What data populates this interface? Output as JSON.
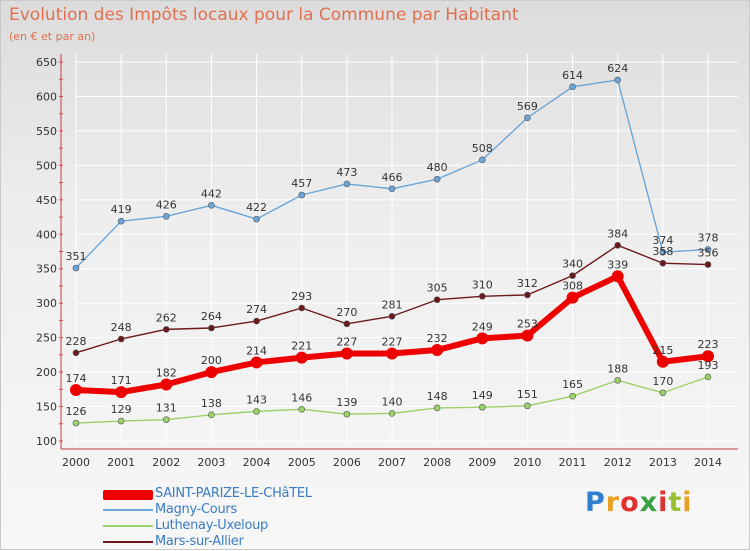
{
  "title": "Evolution des Impôts locaux pour la Commune par Habitant",
  "subtitle": "(en € et par an)",
  "brand": "Proxiti",
  "colors": {
    "saint_parize": "#ee0000",
    "magny": "#6aa6d8",
    "luthenay": "#9ad26a",
    "mars": "#6b1a1a"
  },
  "chart_data": {
    "type": "line",
    "title": "Evolution des Impôts locaux pour la Commune par Habitant",
    "ylabel": "(en € et par an)",
    "xlabel": "",
    "ylim": [
      100,
      650
    ],
    "yticks": [
      100,
      150,
      200,
      250,
      300,
      350,
      400,
      450,
      500,
      550,
      600,
      650
    ],
    "categories": [
      "2000",
      "2001",
      "2002",
      "2003",
      "2004",
      "2005",
      "2006",
      "2007",
      "2008",
      "2009",
      "2010",
      "2011",
      "2012",
      "2013",
      "2014"
    ],
    "series": [
      {
        "name": "SAINT-PARIZE-LE-CHâTEL",
        "key": "saint_parize",
        "values": [
          174,
          171,
          182,
          200,
          214,
          221,
          227,
          227,
          232,
          249,
          253,
          308,
          339,
          215,
          223
        ]
      },
      {
        "name": "Magny-Cours",
        "key": "magny",
        "values": [
          351,
          419,
          426,
          442,
          422,
          457,
          473,
          466,
          480,
          508,
          569,
          614,
          624,
          374,
          378
        ]
      },
      {
        "name": "Luthenay-Uxeloup",
        "key": "luthenay",
        "values": [
          126,
          129,
          131,
          138,
          143,
          146,
          139,
          140,
          148,
          149,
          151,
          165,
          188,
          170,
          193
        ]
      },
      {
        "name": "Mars-sur-Allier",
        "key": "mars",
        "values": [
          228,
          248,
          262,
          264,
          274,
          293,
          270,
          281,
          305,
          310,
          312,
          340,
          384,
          358,
          356
        ]
      }
    ]
  }
}
